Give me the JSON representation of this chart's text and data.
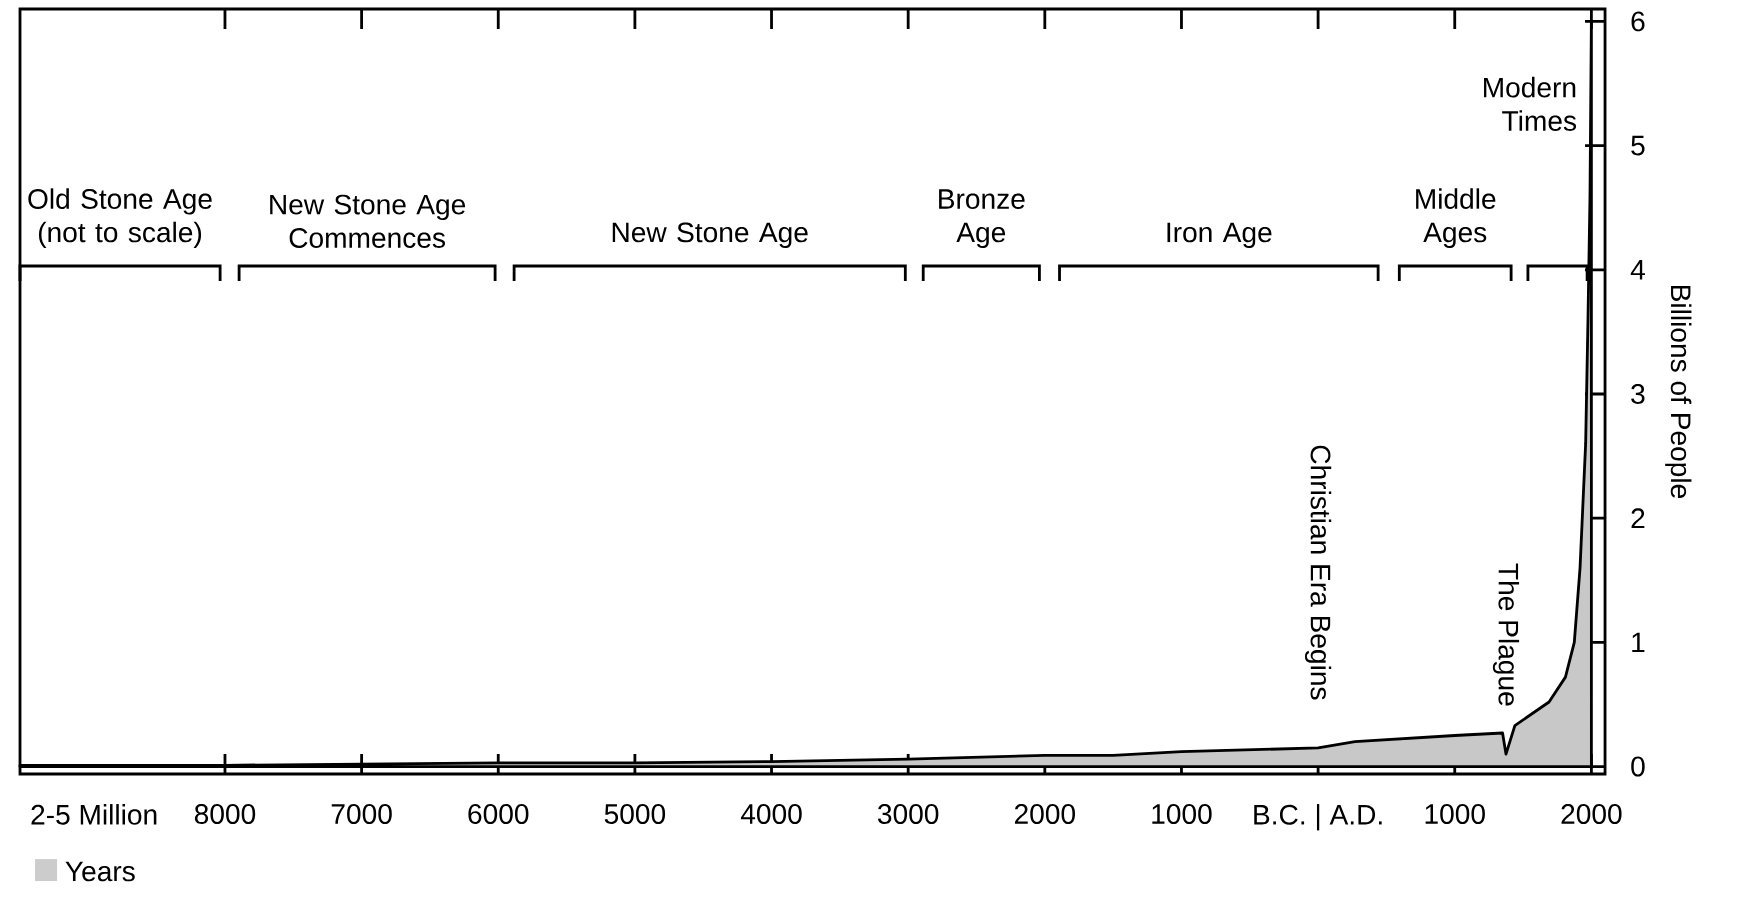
{
  "chart_data": {
    "type": "area",
    "xlabel": "Years",
    "ylabel": "Billions of People",
    "x": [
      -9500,
      -8000,
      -7000,
      -6000,
      -5000,
      -4000,
      -3000,
      -2000,
      -1500,
      -1000,
      0,
      270,
      1000,
      1350,
      1375,
      1440,
      1690,
      1810,
      1875,
      1917,
      1958,
      1975,
      1990,
      2000
    ],
    "series": [
      {
        "color": "#c8c8c8",
        "values": [
          0.01,
          0.01,
          0.02,
          0.03,
          0.03,
          0.04,
          0.06,
          0.09,
          0.09,
          0.12,
          0.15,
          0.2,
          0.25,
          0.27,
          0.1,
          0.33,
          0.52,
          0.72,
          1.0,
          1.6,
          2.6,
          3.6,
          4.6,
          6.0
        ]
      }
    ],
    "xlim": [
      -9500,
      2100
    ],
    "ylim": [
      -0.06,
      6.1
    ],
    "xticks": [
      {
        "value": -8000,
        "label": "8000"
      },
      {
        "value": -7000,
        "label": "7000"
      },
      {
        "value": -6000,
        "label": "6000"
      },
      {
        "value": -5000,
        "label": "5000"
      },
      {
        "value": -4000,
        "label": "4000"
      },
      {
        "value": -3000,
        "label": "3000"
      },
      {
        "value": -2000,
        "label": "2000"
      },
      {
        "value": -1000,
        "label": "1000"
      },
      {
        "value": 0,
        "label": "B.C. | A.D."
      },
      {
        "value": 1000,
        "label": "1000"
      },
      {
        "value": 2000,
        "label": "2000"
      }
    ],
    "yticks": [
      0,
      1,
      2,
      3,
      4,
      5,
      6
    ],
    "annotations": [
      "2-5 Million",
      "Old Stone Age (not to scale)",
      "New Stone Age Commences",
      "New Stone Age",
      "Bronze Age",
      "Iron Age",
      "Middle Ages",
      "Modern Times",
      {
        "text": "Christian Era Begins",
        "x": 0,
        "y": 0.15
      },
      {
        "text": "The Plague",
        "x": 1375,
        "y": 0.1
      }
    ],
    "grid": false
  }
}
